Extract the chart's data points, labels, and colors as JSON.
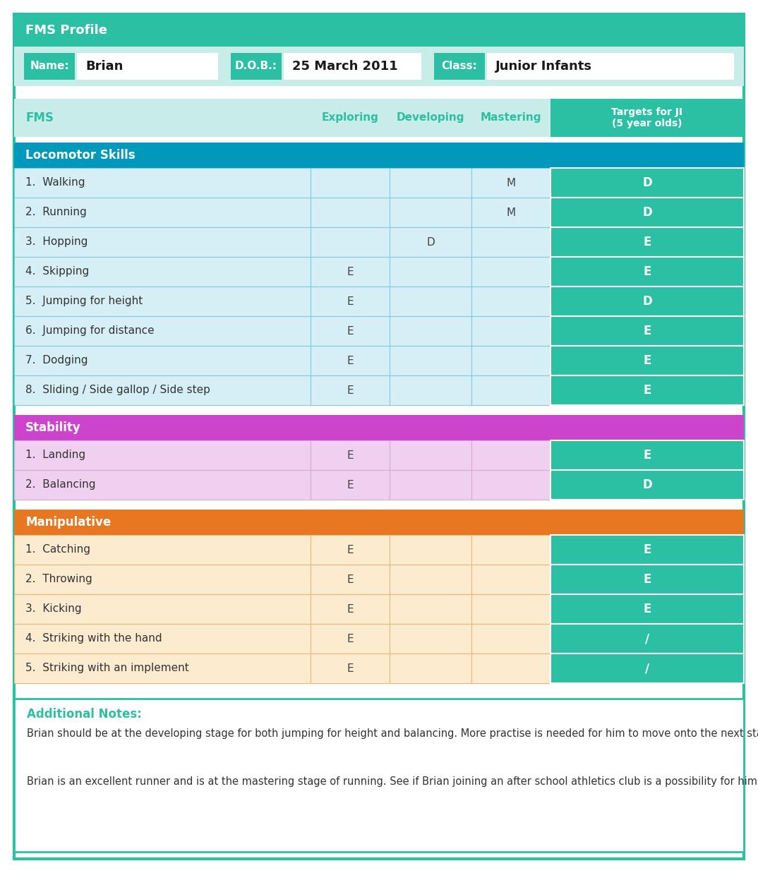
{
  "title": "FMS Profile",
  "name_label": "Name:",
  "name_value": "Brian",
  "dob_label": "D.O.B.:",
  "dob_value": "25 March 2011",
  "class_label": "Class:",
  "class_value": "Junior Infants",
  "col_headers": [
    "FMS",
    "Exploring",
    "Developing",
    "Mastering",
    "Targets for JI\n(5 year olds)"
  ],
  "sections": [
    {
      "name": "Locomotor Skills",
      "color_header": "#0099BB",
      "color_rows": "#D6EEF5",
      "color_border": "#7FCCDD",
      "rows": [
        {
          "skill": "1.  Walking",
          "E": "",
          "D": "",
          "M": "M",
          "T": "D"
        },
        {
          "skill": "2.  Running",
          "E": "",
          "D": "",
          "M": "M",
          "T": "D"
        },
        {
          "skill": "3.  Hopping",
          "E": "",
          "D": "D",
          "M": "",
          "T": "E"
        },
        {
          "skill": "4.  Skipping",
          "E": "E",
          "D": "",
          "M": "",
          "T": "E"
        },
        {
          "skill": "5.  Jumping for height",
          "E": "E",
          "D": "",
          "M": "",
          "T": "D"
        },
        {
          "skill": "6.  Jumping for distance",
          "E": "E",
          "D": "",
          "M": "",
          "T": "E"
        },
        {
          "skill": "7.  Dodging",
          "E": "E",
          "D": "",
          "M": "",
          "T": "E"
        },
        {
          "skill": "8.  Sliding / Side gallop / Side step",
          "E": "E",
          "D": "",
          "M": "",
          "T": "E"
        }
      ]
    },
    {
      "name": "Stability",
      "color_header": "#CC44CC",
      "color_rows": "#F0D0F0",
      "color_border": "#D8A8D8",
      "rows": [
        {
          "skill": "1.  Landing",
          "E": "E",
          "D": "",
          "M": "",
          "T": "E"
        },
        {
          "skill": "2.  Balancing",
          "E": "E",
          "D": "",
          "M": "",
          "T": "D"
        }
      ]
    },
    {
      "name": "Manipulative",
      "color_header": "#E87722",
      "color_rows": "#FDEBD0",
      "color_border": "#E8B87A",
      "rows": [
        {
          "skill": "1.  Catching",
          "E": "E",
          "D": "",
          "M": "",
          "T": "E"
        },
        {
          "skill": "2.  Throwing",
          "E": "E",
          "D": "",
          "M": "",
          "T": "E"
        },
        {
          "skill": "3.  Kicking",
          "E": "E",
          "D": "",
          "M": "",
          "T": "E"
        },
        {
          "skill": "4.  Striking with the hand",
          "E": "E",
          "D": "",
          "M": "",
          "T": "/"
        },
        {
          "skill": "5.  Striking with an implement",
          "E": "E",
          "D": "",
          "M": "",
          "T": "/"
        }
      ]
    }
  ],
  "additional_notes_title": "Additional Notes:",
  "additional_notes_para1": "Brian should be at the developing stage for both jumping for height and balancing. More practise is needed for him to move onto the next stage of development for both these skills. Encourage the use of the 'at home' ideas over the summer.",
  "additional_notes_para2": "Brian is an excellent runner and is at the mastering stage of running. See if Brian joining an after school athletics club is a possibility for him and his parents.",
  "color_teal": "#2BBFA4",
  "color_light_teal": "#C8EDE8",
  "color_white": "#FFFFFF",
  "color_text_dark": "#333333",
  "color_text_teal": "#2BBFA4",
  "outer_border": "#2BBFA4",
  "fig_w": 10.74,
  "fig_h": 12.37,
  "dpi": 100
}
